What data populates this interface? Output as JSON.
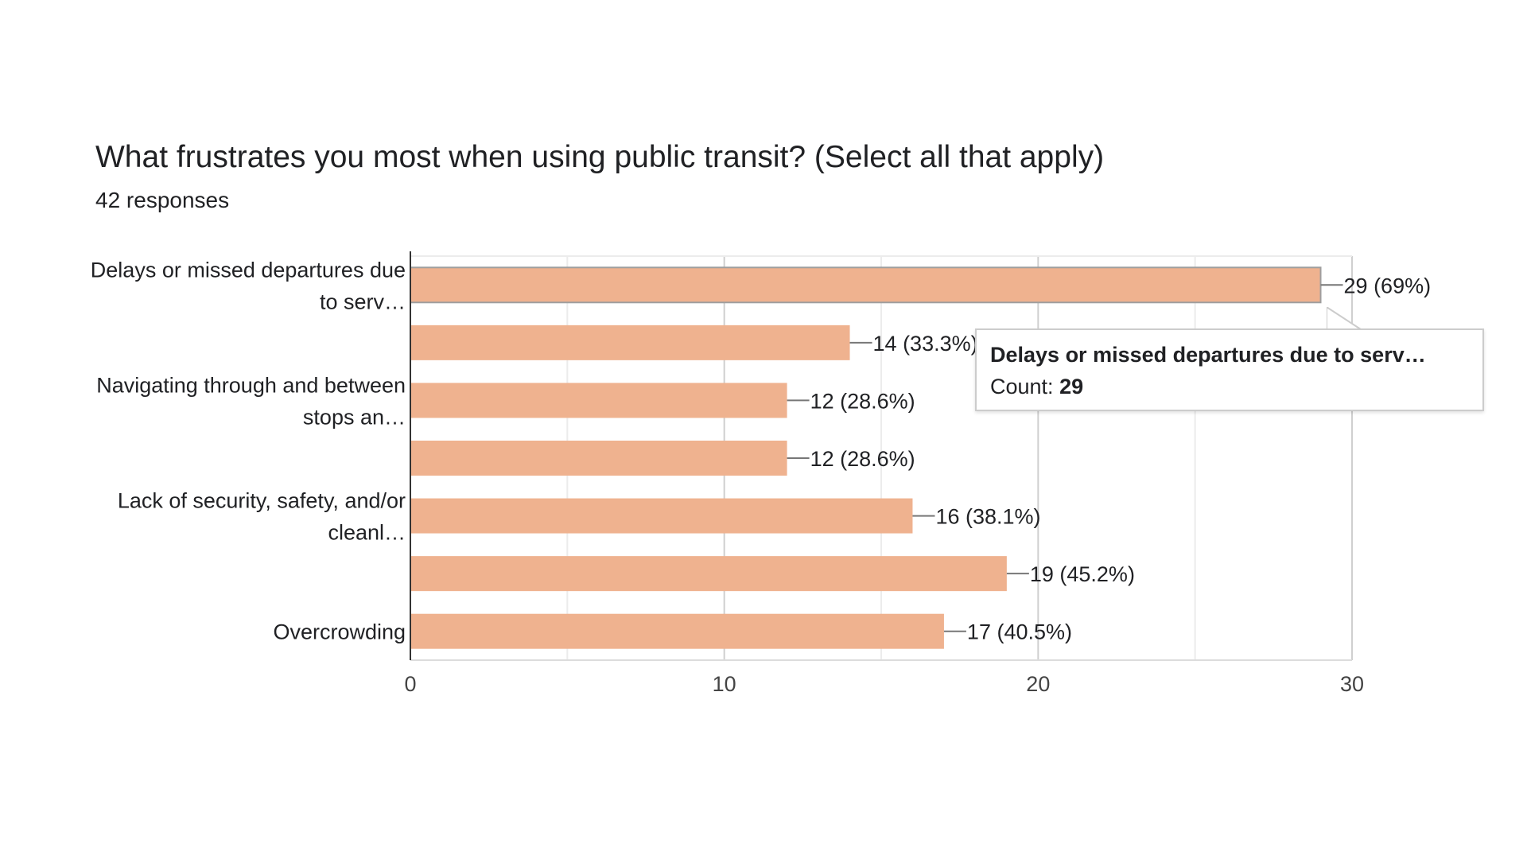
{
  "chart_data": {
    "type": "bar",
    "orientation": "horizontal",
    "title": "What frustrates you most when using public transit? (Select all that apply)",
    "subtitle": "42 responses",
    "categories": [
      "Delays or missed departures due to serv…",
      "",
      "Navigating through and between stops an…",
      "",
      "Lack of security, safety, and/or cleanl…",
      "",
      "Overcrowding"
    ],
    "category_label_lines": [
      [
        "Delays or missed departures due",
        "to serv…"
      ],
      [],
      [
        "Navigating through and between",
        "stops an…"
      ],
      [],
      [
        "Lack of security, safety, and/or",
        "cleanl…"
      ],
      [],
      [
        "Overcrowding"
      ]
    ],
    "values": [
      29,
      14,
      12,
      12,
      16,
      19,
      17
    ],
    "data_labels": [
      "29 (69%)",
      "14 (33.3%)",
      "12 (28.6%)",
      "12 (28.6%)",
      "16 (38.1%)",
      "19 (45.2%)",
      "17 (40.5%)"
    ],
    "xlim": [
      0,
      30
    ],
    "x_ticks": [
      0,
      10,
      20,
      30
    ],
    "grid": true,
    "bar_color": "#efb28f",
    "legend": "none"
  },
  "tooltip": {
    "title": "Delays or missed departures due to serv…",
    "count_label": "Count:",
    "count_value": "29"
  }
}
